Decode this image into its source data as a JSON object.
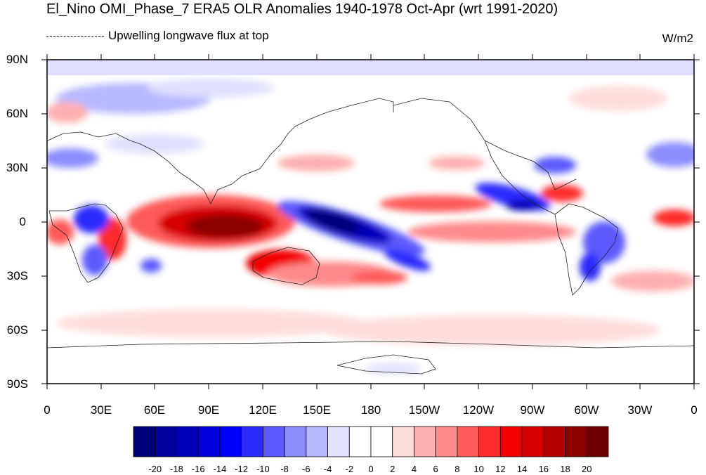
{
  "title": "El_Nino OMI_Phase_7 ERA5 OLR Anomalies 1940-1978 Oct-Apr (wrt 1991-2020)",
  "subtitle": "Upwelling longwave flux at top",
  "units": "W/m2",
  "lat_labels": [
    "90N",
    "60N",
    "30N",
    "0",
    "30S",
    "60S",
    "90S"
  ],
  "lon_labels": [
    "0",
    "30E",
    "60E",
    "90E",
    "120E",
    "150E",
    "180",
    "150W",
    "120W",
    "90W",
    "60W",
    "30W",
    "0"
  ],
  "colorbar": {
    "labels": [
      "-20",
      "-18",
      "-16",
      "-14",
      "-12",
      "-10",
      "-8",
      "-6",
      "-4",
      "-2",
      "0",
      "2",
      "4",
      "6",
      "8",
      "10",
      "12",
      "14",
      "16",
      "18",
      "20"
    ],
    "colors": [
      "#00007a",
      "#00009a",
      "#0000bb",
      "#0000dd",
      "#0000ff",
      "#2a2aff",
      "#5a5aff",
      "#8c8cff",
      "#b8b8ff",
      "#e2e2ff",
      "#ffffff",
      "#ffffff",
      "#ffdcdc",
      "#ffb0b0",
      "#ff8a8a",
      "#ff5a5a",
      "#ff2a2a",
      "#f20000",
      "#d60000",
      "#b40000",
      "#8c0000",
      "#6a0000"
    ]
  }
}
